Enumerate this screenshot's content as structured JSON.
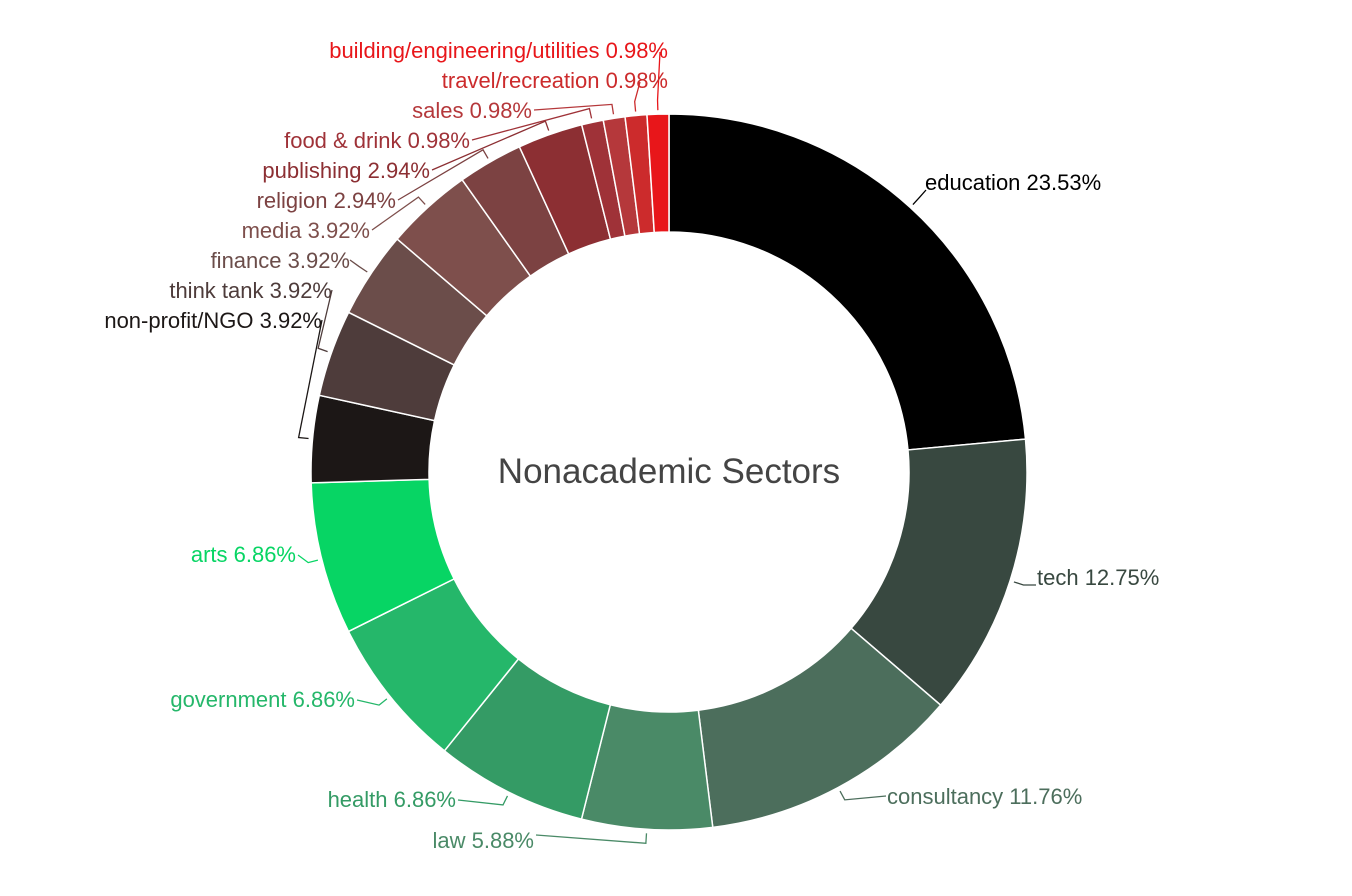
{
  "chart_data": {
    "type": "pie",
    "donut": true,
    "center_title": "Nonacademic Sectors",
    "unit": "%",
    "slices": [
      {
        "label": "education",
        "value": 23.53,
        "color": "#000000"
      },
      {
        "label": "tech",
        "value": 12.75,
        "color": "#384840"
      },
      {
        "label": "consultancy",
        "value": 11.76,
        "color": "#4c6e5c"
      },
      {
        "label": "law",
        "value": 5.88,
        "color": "#4a8a67"
      },
      {
        "label": "health",
        "value": 6.86,
        "color": "#349b65"
      },
      {
        "label": "government",
        "value": 6.86,
        "color": "#25b76a"
      },
      {
        "label": "arts",
        "value": 6.86,
        "color": "#07d564"
      },
      {
        "label": "non-profit/NGO",
        "value": 3.92,
        "color": "#1c1716"
      },
      {
        "label": "think tank",
        "value": 3.92,
        "color": "#4e3c3b"
      },
      {
        "label": "finance",
        "value": 3.92,
        "color": "#6b4d4a"
      },
      {
        "label": "media",
        "value": 3.92,
        "color": "#7e4f4c"
      },
      {
        "label": "religion",
        "value": 2.94,
        "color": "#7c4242"
      },
      {
        "label": "publishing",
        "value": 2.94,
        "color": "#8c2f33"
      },
      {
        "label": "food & drink",
        "value": 0.98,
        "color": "#9f3238"
      },
      {
        "label": "sales",
        "value": 0.98,
        "color": "#b5383b"
      },
      {
        "label": "travel/recreation",
        "value": 0.98,
        "color": "#cc2b2c"
      },
      {
        "label": "building/engineering/utilities",
        "value": 0.98,
        "color": "#e8161a"
      }
    ],
    "label_colors": {
      "education": "#000000",
      "tech": "#384840",
      "consultancy": "#4c6e5c",
      "law": "#4a8a67",
      "health": "#349b65",
      "government": "#25b76a",
      "arts": "#07d564",
      "non-profit/NGO": "#1c1716",
      "think tank": "#4e3c3b",
      "finance": "#6b4d4a",
      "media": "#7e4f4c",
      "religion": "#7c4242",
      "publishing": "#8c2f33",
      "food & drink": "#9f3238",
      "sales": "#b5383b",
      "travel/recreation": "#cc2b2c",
      "building/engineering/utilities": "#e8161a"
    }
  }
}
